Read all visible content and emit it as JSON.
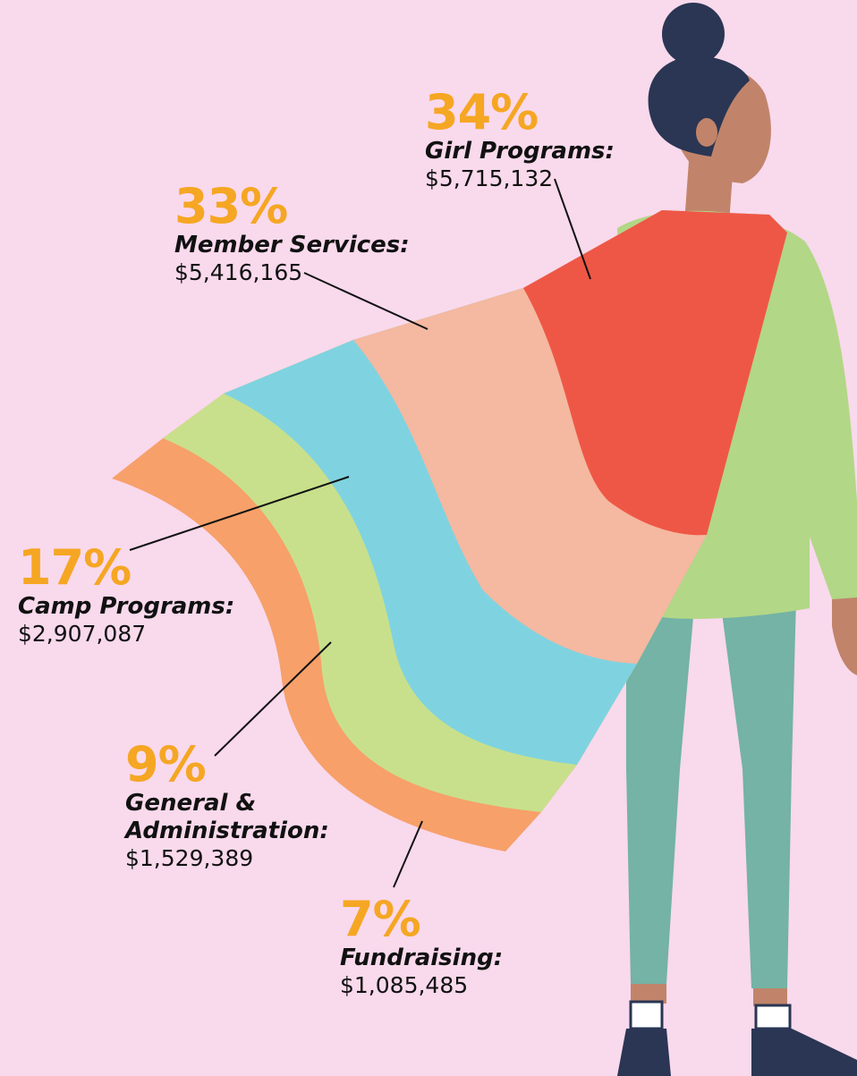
{
  "chart_data": {
    "type": "cape",
    "categories": [
      "Girl Programs:",
      "Member Services:",
      "Camp Programs:",
      "General & Administration:",
      "Fundraising:"
    ],
    "values": [
      34,
      33,
      17,
      9,
      7
    ],
    "value_labels": [
      "34%",
      "33%",
      "17%",
      "9%",
      "7%"
    ],
    "amounts": [
      5715132,
      5416165,
      2907087,
      1529389,
      1085485
    ],
    "amount_labels": [
      "$5,715,132",
      "$5,416,165",
      "$2,907,087",
      "$1,529,389",
      "$1,085,485"
    ],
    "colors": [
      "#ee5746",
      "#f5b8a0",
      "#7fd3e0",
      "#c8e08c",
      "#f7a06a"
    ]
  }
}
